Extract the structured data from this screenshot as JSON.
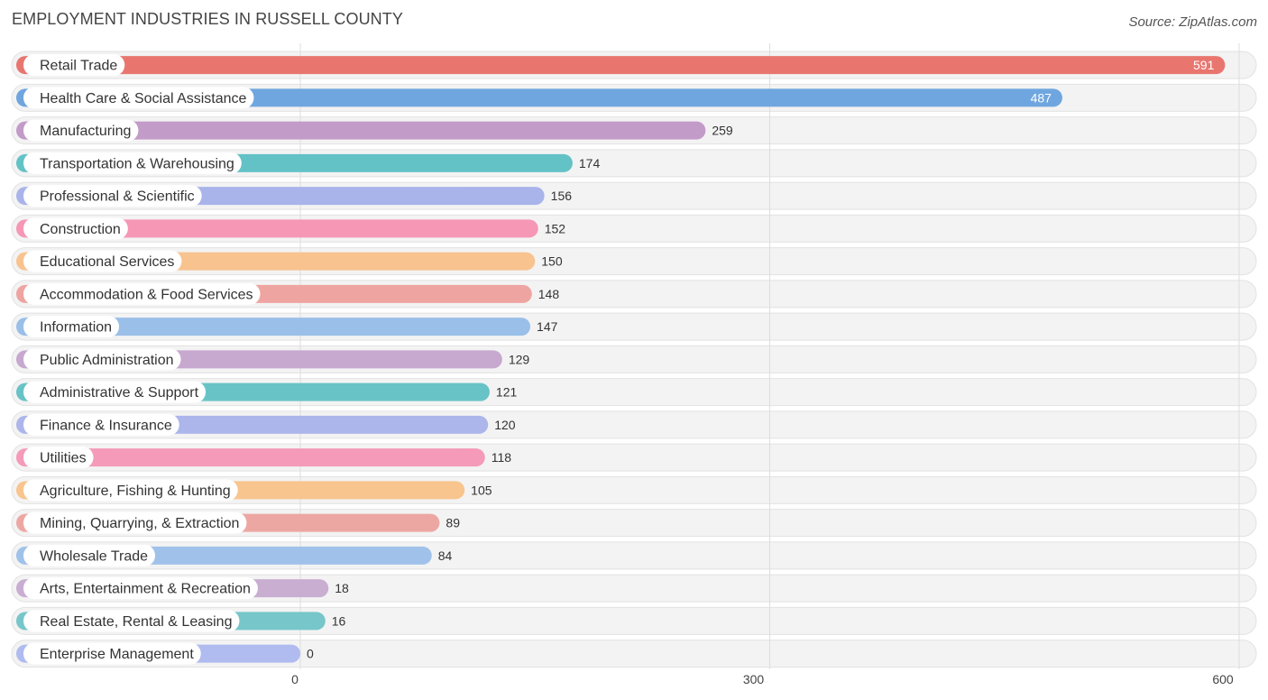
{
  "chart_data": {
    "type": "bar",
    "orientation": "horizontal",
    "title": "EMPLOYMENT INDUSTRIES IN RUSSELL COUNTY",
    "source": "Source: ZipAtlas.com",
    "xlim": [
      0,
      600
    ],
    "xticks": [
      0,
      300,
      600
    ],
    "grid": true,
    "categories": [
      "Retail Trade",
      "Health Care & Social Assistance",
      "Manufacturing",
      "Transportation & Warehousing",
      "Professional & Scientific",
      "Construction",
      "Educational Services",
      "Accommodation & Food Services",
      "Information",
      "Public Administration",
      "Administrative & Support",
      "Finance & Insurance",
      "Utilities",
      "Agriculture, Fishing & Hunting",
      "Mining, Quarrying, & Extraction",
      "Wholesale Trade",
      "Arts, Entertainment & Recreation",
      "Real Estate, Rental & Leasing",
      "Enterprise Management"
    ],
    "values": [
      591,
      487,
      259,
      174,
      156,
      152,
      150,
      148,
      147,
      129,
      121,
      120,
      118,
      105,
      89,
      84,
      18,
      16,
      0
    ],
    "colors": [
      "#e8766f",
      "#6fa6df",
      "#c39bc9",
      "#63c2c6",
      "#a8b4ea",
      "#f597b5",
      "#f8c38f",
      "#eea4a0",
      "#9abfe8",
      "#c7a8cf",
      "#68c3c6",
      "#acb6ea",
      "#f59ab8",
      "#f8c58f",
      "#eda7a3",
      "#a0c2ea",
      "#c9aed2",
      "#76c6ca",
      "#b0bcef"
    ]
  }
}
